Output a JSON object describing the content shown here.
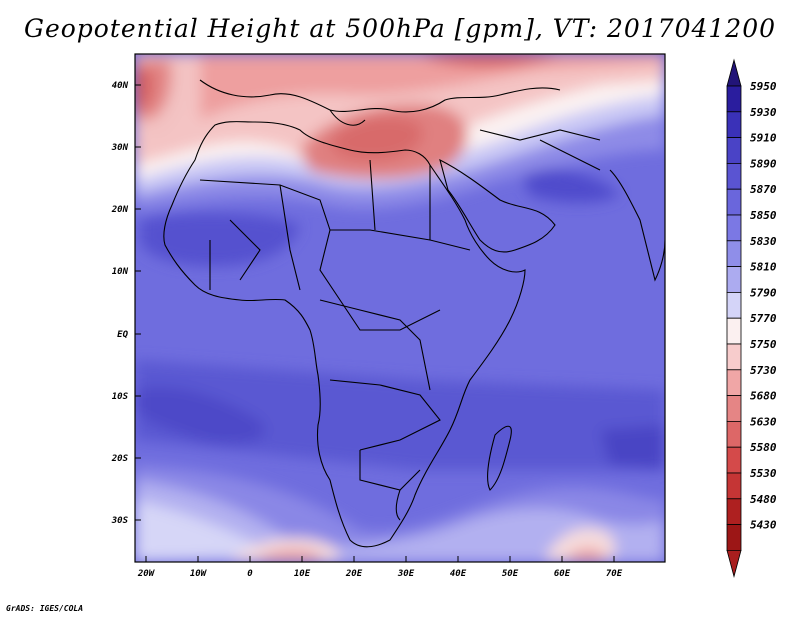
{
  "title": "Geopotential Height at 500hPa [gpm], VT: 2017041200",
  "credit": "GrADS: IGES/COLA",
  "lat_labels": [
    "40N",
    "30N",
    "20N",
    "10N",
    "EQ",
    "10S",
    "20S",
    "30S"
  ],
  "lon_labels": [
    "20W",
    "10W",
    "0",
    "10E",
    "20E",
    "30E",
    "40E",
    "50E",
    "60E",
    "70E"
  ],
  "colorbar": {
    "levels": [
      "5950",
      "5930",
      "5910",
      "5890",
      "5870",
      "5850",
      "5830",
      "5810",
      "5790",
      "5770",
      "5750",
      "5730",
      "5680",
      "5630",
      "5580",
      "5530",
      "5480",
      "5430"
    ],
    "colors": [
      "#2a1d9e",
      "#3a31b8",
      "#4a43c6",
      "#5a54d2",
      "#6a66dc",
      "#7b78e4",
      "#8f8ee9",
      "#acabf0",
      "#d4d4f8",
      "#fbf0f0",
      "#f7cccc",
      "#f0a6a6",
      "#e58585",
      "#dd6767",
      "#d44a4a",
      "#c53535",
      "#ae2020",
      "#9c1616"
    ],
    "top_arrow_color": "#221478",
    "bottom_arrow_color": "#a81e1e"
  },
  "colors": {
    "background_low": "#6f6dde",
    "land_outline": "#000000"
  }
}
